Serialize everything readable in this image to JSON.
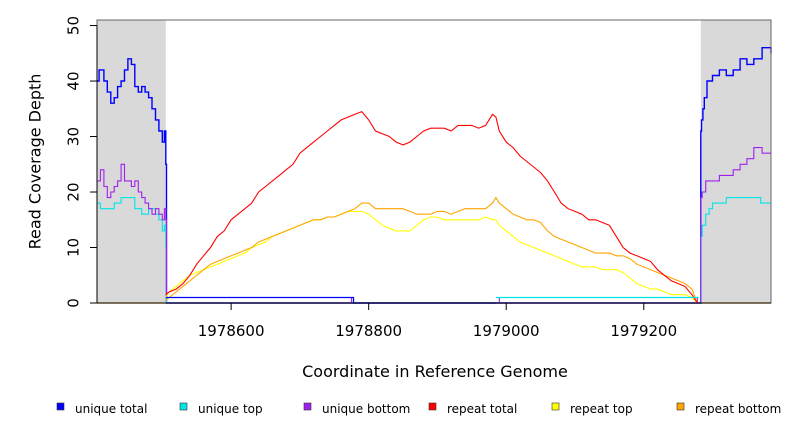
{
  "chart_data": {
    "type": "line",
    "title": "",
    "xlabel": "Coordinate in Reference Genome",
    "ylabel": "Read Coverage Depth",
    "xlim": [
      1978405,
      1979385
    ],
    "ylim": [
      0,
      51
    ],
    "xticks": [
      1978600,
      1978800,
      1979000,
      1979200
    ],
    "xtick_labels": [
      "1978600",
      "1978800",
      "1979000",
      "1979200"
    ],
    "yticks": [
      0,
      10,
      20,
      30,
      40,
      50
    ],
    "ytick_labels": [
      "0",
      "10",
      "20",
      "30",
      "40",
      "50"
    ],
    "shaded_regions": [
      [
        1978405,
        1978505
      ],
      [
        1979283,
        1979385
      ]
    ],
    "grid": false,
    "legend_position": "bottom",
    "series": [
      {
        "name": "unique total",
        "color": "#0000ff",
        "step": true,
        "x": [
          1978405,
          1978408,
          1978415,
          1978420,
          1978425,
          1978430,
          1978435,
          1978440,
          1978445,
          1978450,
          1978455,
          1978460,
          1978465,
          1978470,
          1978475,
          1978480,
          1978485,
          1978490,
          1978495,
          1978500,
          1978503,
          1978505,
          1978506,
          1979283,
          1979284,
          1979286,
          1979288,
          1979292,
          1979300,
          1979310,
          1979320,
          1979330,
          1979340,
          1979350,
          1979360,
          1979372,
          1979385
        ],
        "y": [
          40,
          42,
          40,
          38,
          36,
          37,
          39,
          40,
          42,
          44,
          43,
          39,
          38,
          39,
          38,
          37,
          35,
          33,
          31,
          29,
          31,
          25,
          0,
          31,
          33,
          35,
          37,
          40,
          41,
          42,
          41,
          42,
          44,
          43,
          44,
          46,
          45
        ]
      },
      {
        "name": "unique top",
        "color": "#00e5e5",
        "step": true,
        "x": [
          1978405,
          1978410,
          1978420,
          1978430,
          1978440,
          1978450,
          1978460,
          1978470,
          1978480,
          1978490,
          1978495,
          1978500,
          1978503,
          1978505,
          1978506,
          1979283,
          1979285,
          1979290,
          1979295,
          1979300,
          1979320,
          1979340,
          1979370,
          1979385
        ],
        "y": [
          18,
          17,
          17,
          18,
          19,
          19,
          17,
          16,
          17,
          16,
          15,
          13,
          14,
          10,
          0,
          12,
          14,
          16,
          17,
          18,
          19,
          19,
          18,
          18
        ],
        "z": 2
      },
      {
        "name": "unique bottom",
        "color": "#a020f0",
        "step": true,
        "x": [
          1978405,
          1978410,
          1978415,
          1978420,
          1978425,
          1978430,
          1978435,
          1978440,
          1978445,
          1978450,
          1978455,
          1978460,
          1978465,
          1978470,
          1978475,
          1978480,
          1978485,
          1978490,
          1978495,
          1978500,
          1978503,
          1978505,
          1978506,
          1978510,
          1978770,
          1978775,
          1978985,
          1978990,
          1979270,
          1979278,
          1979283,
          1979285,
          1979290,
          1979300,
          1979310,
          1979320,
          1979330,
          1979340,
          1979350,
          1979360,
          1979372,
          1979385
        ],
        "y": [
          22,
          24,
          21,
          19,
          20,
          21,
          22,
          25,
          22,
          22,
          21,
          22,
          20,
          19,
          18,
          17,
          16,
          17,
          16,
          15,
          17,
          15,
          1,
          1,
          1,
          0,
          0,
          1,
          1,
          0,
          19,
          20,
          22,
          22,
          23,
          23,
          24,
          25,
          26,
          28,
          27,
          27
        ],
        "z": 3
      },
      {
        "name": "repeat total",
        "color": "#ff0000",
        "step": false,
        "x": [
          1978505,
          1978510,
          1978520,
          1978530,
          1978540,
          1978550,
          1978560,
          1978570,
          1978580,
          1978590,
          1978600,
          1978610,
          1978620,
          1978630,
          1978640,
          1978650,
          1978660,
          1978670,
          1978680,
          1978690,
          1978700,
          1978710,
          1978720,
          1978730,
          1978740,
          1978750,
          1978760,
          1978770,
          1978780,
          1978790,
          1978800,
          1978810,
          1978820,
          1978830,
          1978840,
          1978850,
          1978860,
          1978870,
          1978880,
          1978890,
          1978900,
          1978910,
          1978920,
          1978930,
          1978940,
          1978950,
          1978960,
          1978970,
          1978980,
          1978985,
          1978990,
          1979000,
          1979010,
          1979020,
          1979030,
          1979040,
          1979050,
          1979060,
          1979070,
          1979080,
          1979090,
          1979100,
          1979110,
          1979120,
          1979130,
          1979140,
          1979150,
          1979160,
          1979170,
          1979180,
          1979190,
          1979200,
          1979210,
          1979220,
          1979230,
          1979240,
          1979250,
          1979260,
          1979270,
          1979278
        ],
        "y": [
          1.5,
          2,
          2.5,
          3.5,
          5,
          7,
          8.5,
          10,
          12,
          13,
          15,
          16,
          17,
          18,
          20,
          21,
          22,
          23,
          24,
          25,
          27,
          28,
          29,
          30,
          31,
          32,
          33,
          33.5,
          34,
          34.5,
          33,
          31,
          30.5,
          30,
          29,
          28.5,
          29,
          30,
          31,
          31.5,
          31.5,
          31.5,
          31,
          32,
          32,
          32,
          31.5,
          32,
          34,
          33.5,
          31,
          29,
          28,
          26.5,
          25.5,
          24.5,
          23.5,
          22,
          20,
          18,
          17,
          16.5,
          16,
          15,
          15,
          14.5,
          14,
          12,
          10,
          9,
          8.5,
          8,
          7.5,
          6,
          5,
          4,
          3.5,
          3,
          1.5,
          0
        ],
        "z": 6
      },
      {
        "name": "repeat top",
        "color": "#ffff00",
        "step": false,
        "x": [
          1978505,
          1978510,
          1978520,
          1978530,
          1978540,
          1978550,
          1978560,
          1978570,
          1978580,
          1978590,
          1978600,
          1978610,
          1978620,
          1978630,
          1978640,
          1978650,
          1978660,
          1978670,
          1978680,
          1978690,
          1978700,
          1978710,
          1978720,
          1978730,
          1978740,
          1978750,
          1978760,
          1978770,
          1978780,
          1978790,
          1978800,
          1978810,
          1978820,
          1978830,
          1978840,
          1978850,
          1978860,
          1978870,
          1978880,
          1978890,
          1978900,
          1978910,
          1978920,
          1978930,
          1978940,
          1978950,
          1978960,
          1978970,
          1978980,
          1978985,
          1978990,
          1979000,
          1979010,
          1979020,
          1979030,
          1979040,
          1979050,
          1979060,
          1979070,
          1979080,
          1979090,
          1979100,
          1979110,
          1979120,
          1979130,
          1979140,
          1979150,
          1979160,
          1979170,
          1979180,
          1979190,
          1979200,
          1979210,
          1979220,
          1979230,
          1979240,
          1979250,
          1979260,
          1979270,
          1979278
        ],
        "y": [
          1,
          2,
          3,
          4,
          5,
          5.5,
          6,
          6.5,
          7,
          7.5,
          8,
          8.5,
          9,
          10,
          10.5,
          11,
          12,
          12.5,
          13,
          13.5,
          14,
          14.5,
          15,
          15,
          15.5,
          15.5,
          16,
          16.5,
          16.5,
          16.5,
          16,
          15,
          14,
          13.5,
          13,
          13,
          13,
          14,
          15,
          15.5,
          15.5,
          15,
          15,
          15,
          15,
          15,
          15,
          15.5,
          15,
          15,
          14,
          13,
          12,
          11,
          10.5,
          10,
          9.5,
          9,
          8.5,
          8,
          7.5,
          7,
          6.5,
          6.5,
          6.5,
          6,
          6,
          6,
          5.5,
          4.5,
          3.5,
          3,
          2.5,
          2.5,
          2,
          1.5,
          1.5,
          1.5,
          1,
          0
        ],
        "z": 4
      },
      {
        "name": "repeat bottom",
        "color": "#ffa500",
        "step": false,
        "x": [
          1978505,
          1978510,
          1978520,
          1978530,
          1978540,
          1978550,
          1978560,
          1978570,
          1978580,
          1978590,
          1978600,
          1978610,
          1978620,
          1978630,
          1978640,
          1978650,
          1978660,
          1978670,
          1978680,
          1978690,
          1978700,
          1978710,
          1978720,
          1978730,
          1978740,
          1978750,
          1978760,
          1978770,
          1978780,
          1978790,
          1978800,
          1978810,
          1978820,
          1978830,
          1978840,
          1978850,
          1978860,
          1978870,
          1978880,
          1978890,
          1978900,
          1978910,
          1978920,
          1978930,
          1978940,
          1978950,
          1978960,
          1978970,
          1978980,
          1978985,
          1978990,
          1979000,
          1979010,
          1979020,
          1979030,
          1979040,
          1979050,
          1979060,
          1979070,
          1979080,
          1979090,
          1979100,
          1979110,
          1979120,
          1979130,
          1979140,
          1979150,
          1979160,
          1979170,
          1979180,
          1979190,
          1979200,
          1979210,
          1979220,
          1979230,
          1979240,
          1979250,
          1979260,
          1979270,
          1979278
        ],
        "y": [
          0.5,
          1,
          2,
          3,
          4,
          5,
          6,
          7,
          7.5,
          8,
          8.5,
          9,
          9.5,
          10,
          11,
          11.5,
          12,
          12.5,
          13,
          13.5,
          14,
          14.5,
          15,
          15,
          15.5,
          15.5,
          16,
          16.5,
          17,
          18,
          18,
          17,
          17,
          17,
          17,
          17,
          16.5,
          16,
          16,
          16,
          16.5,
          16.5,
          16,
          16.5,
          17,
          17,
          17,
          17,
          18,
          19,
          18,
          17,
          16,
          15.5,
          15,
          15,
          14.5,
          13,
          12,
          11.5,
          11,
          10.5,
          10,
          9.5,
          9,
          9,
          9,
          8.5,
          8.5,
          8,
          7,
          6.5,
          6,
          5.5,
          5,
          4.5,
          4,
          3.5,
          2.5,
          0
        ],
        "z": 5
      }
    ],
    "baseline_series": [
      {
        "name": "repeat bottom",
        "color": "#ffa500",
        "x": [
          1978405,
          1979385
        ],
        "y": [
          0,
          0
        ]
      }
    ],
    "extra_segments": [
      {
        "name": "unique total",
        "color": "#0000ff",
        "x": [
          1978505,
          1978778,
          1978778,
          1978985
        ],
        "y": [
          1,
          1,
          0,
          0
        ]
      },
      {
        "name": "unique top",
        "color": "#00e5e5",
        "x": [
          1978985,
          1979280
        ],
        "y": [
          1,
          1
        ]
      }
    ]
  }
}
